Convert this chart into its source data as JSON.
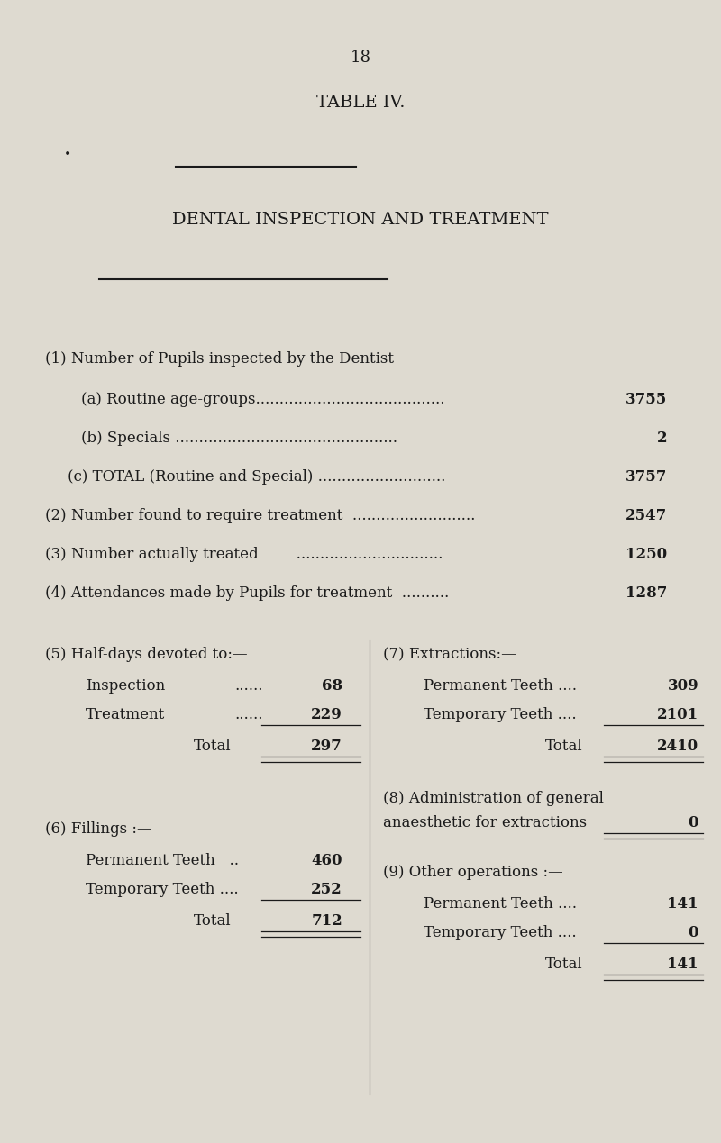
{
  "page_number": "18",
  "table_title": "TABLE IV.",
  "subtitle": "DENTAL INSPECTION AND TREATMENT",
  "background_color": "#dedad0",
  "text_color": "#1a1a1a",
  "s1_header": "(1) Number of Pupils inspected by the Dentist",
  "s1a_label": "(a) Routine age-groups",
  "s1a_dots": "...............................",
  "s1a_value": "3755",
  "s1b_label": "(b) Specials",
  "s1b_dots": ".......................................",
  "s1b_value": "2",
  "s1c_label": "(c) TOTAL (Routine and Special)",
  "s1c_dots": "...................",
  "s1c_value": "3757",
  "s2_label": "(2) Number found to require treatment",
  "s2_dots": "...................",
  "s2_value": "2547",
  "s3_label": "(3) Number actually treated",
  "s3_dots": "......................",
  "s3_value": "1250",
  "s4_label": "(4) Attendances made by Pupils for treatment",
  "s4_dots": "..........",
  "s4_value": "1287",
  "s5_header": "(5) Half-days devoted to:—",
  "s5_inspection_label": "Inspection",
  "s5_inspection_dots": "......",
  "s5_inspection_value": "68",
  "s5_treatment_label": "Treatment",
  "s5_treatment_dots": "......",
  "s5_treatment_value": "229",
  "s5_total_label": "Total",
  "s5_total_value": "297",
  "s6_header": "(6) Fillings :—",
  "s6_perm_label": "Permanent Teeth",
  "s6_perm_dots": "..",
  "s6_perm_value": "460",
  "s6_temp_label": "Temporary Teeth ....",
  "s6_temp_value": "252",
  "s6_total_label": "Total",
  "s6_total_value": "712",
  "s7_header": "(7) Extractions:—",
  "s7_perm_label": "Permanent Teeth ....",
  "s7_perm_value": "309",
  "s7_temp_label": "Temporary Teeth ....",
  "s7_temp_value": "2101",
  "s7_total_label": "Total",
  "s7_total_value": "2410",
  "s8_line1": "(8) Administration of general",
  "s8_line2": "anaesthetic for extractions",
  "s8_value": "0",
  "s9_header": "(9) Other operations :—",
  "s9_perm_label": "Permanent Teeth ....",
  "s9_perm_value": "141",
  "s9_temp_label": "Temporary Teeth ....",
  "s9_temp_value": "0",
  "s9_total_label": "Total",
  "s9_total_value": "141"
}
